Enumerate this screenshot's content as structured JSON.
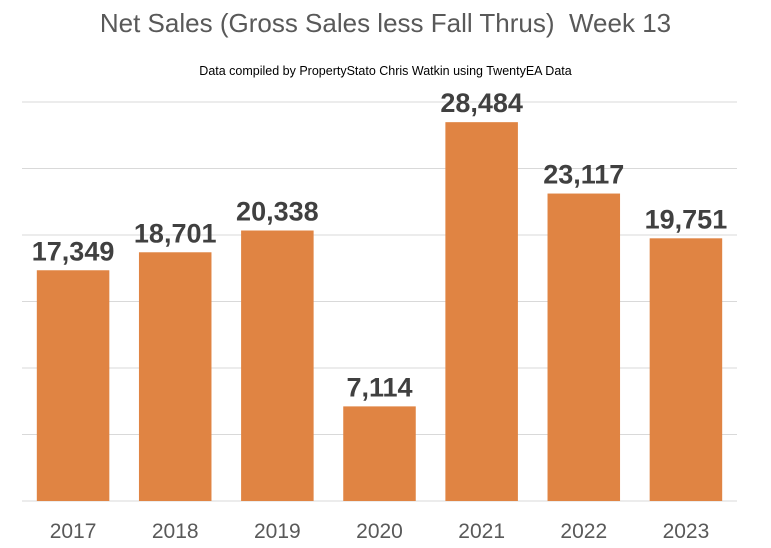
{
  "chart_data": {
    "type": "bar",
    "title": "Net Sales (Gross Sales less Fall Thrus)  Week 13",
    "subtitle": "Data compiled by PropertyStato Chris Watkin using TwentyEA Data",
    "categories": [
      "2017",
      "2018",
      "2019",
      "2020",
      "2021",
      "2022",
      "2023"
    ],
    "values": [
      17349,
      18701,
      20338,
      7114,
      28484,
      23117,
      19751
    ],
    "data_labels": [
      "17,349",
      "18,701",
      "20,338",
      "7,114",
      "28,484",
      "23,117",
      "19,751"
    ],
    "xlabel": "",
    "ylabel": "",
    "ylim": [
      0,
      30000
    ],
    "y_axis_labels_shown": false,
    "grid": true,
    "legend": "none",
    "bar_color": "#E08443",
    "grid_color": "#D9D9D9"
  }
}
